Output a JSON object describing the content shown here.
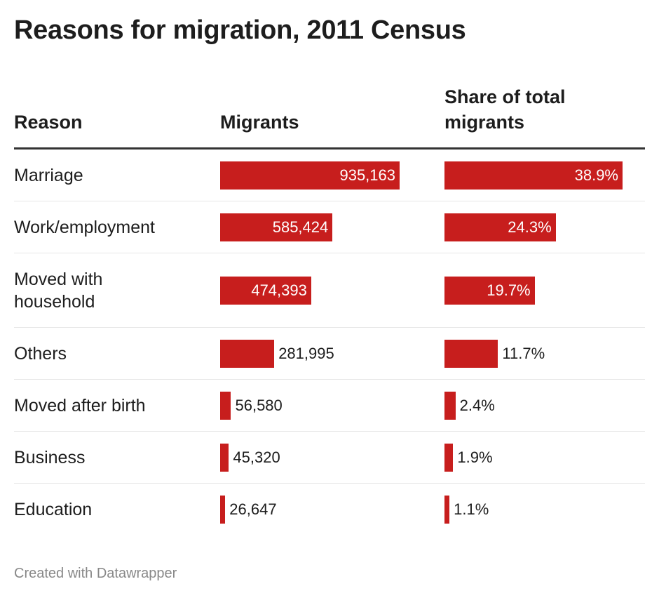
{
  "title": "Reasons for migration, 2011 Census",
  "chart_data": {
    "type": "table",
    "title": "Reasons for migration, 2011 Census",
    "columns": [
      "Reason",
      "Migrants",
      "Share of total migrants"
    ],
    "bar_color": "#c71e1d",
    "rows": [
      {
        "reason": "Marriage",
        "migrants": 935163,
        "migrants_label": "935,163",
        "share": 38.9,
        "share_label": "38.9%"
      },
      {
        "reason": "Work/employment",
        "migrants": 585424,
        "migrants_label": "585,424",
        "share": 24.3,
        "share_label": "24.3%"
      },
      {
        "reason": "Moved with household",
        "migrants": 474393,
        "migrants_label": "474,393",
        "share": 19.7,
        "share_label": "19.7%"
      },
      {
        "reason": "Others",
        "migrants": 281995,
        "migrants_label": "281,995",
        "share": 11.7,
        "share_label": "11.7%"
      },
      {
        "reason": "Moved after birth",
        "migrants": 56580,
        "migrants_label": "56,580",
        "share": 2.4,
        "share_label": "2.4%"
      },
      {
        "reason": "Business",
        "migrants": 45320,
        "migrants_label": "45,320",
        "share": 1.9,
        "share_label": "1.9%"
      },
      {
        "reason": "Education",
        "migrants": 26647,
        "migrants_label": "26,647",
        "share": 1.1,
        "share_label": "1.1%"
      }
    ]
  },
  "footer": "Created with Datawrapper"
}
